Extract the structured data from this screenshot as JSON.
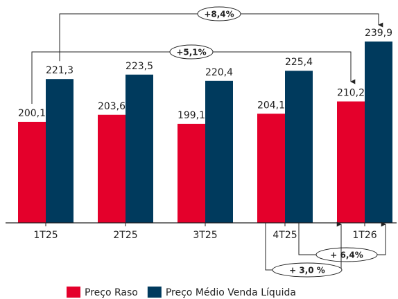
{
  "chart_data": {
    "type": "bar",
    "categories": [
      "1T25",
      "2T25",
      "3T25",
      "4T25",
      "1T26"
    ],
    "series": [
      {
        "name": "Preço Raso",
        "color": "#e4002b",
        "values": [
          200.1,
          203.6,
          199.1,
          204.1,
          210.2
        ],
        "value_labels": [
          "200,1",
          "203,6",
          "199,1",
          "204,1",
          "210,2"
        ]
      },
      {
        "name": "Preço Médio Venda Líquida",
        "color": "#003a5d",
        "values": [
          221.3,
          223.5,
          220.4,
          225.4,
          239.9
        ],
        "value_labels": [
          "221,3",
          "223,5",
          "220,4",
          "225,4",
          "239,9"
        ]
      }
    ],
    "ylim": [
      150,
      260
    ],
    "annotations": [
      "+8,4%",
      "+5,1%",
      "+ 6,4%",
      "+ 3,0 %"
    ],
    "legend": "bottom"
  }
}
